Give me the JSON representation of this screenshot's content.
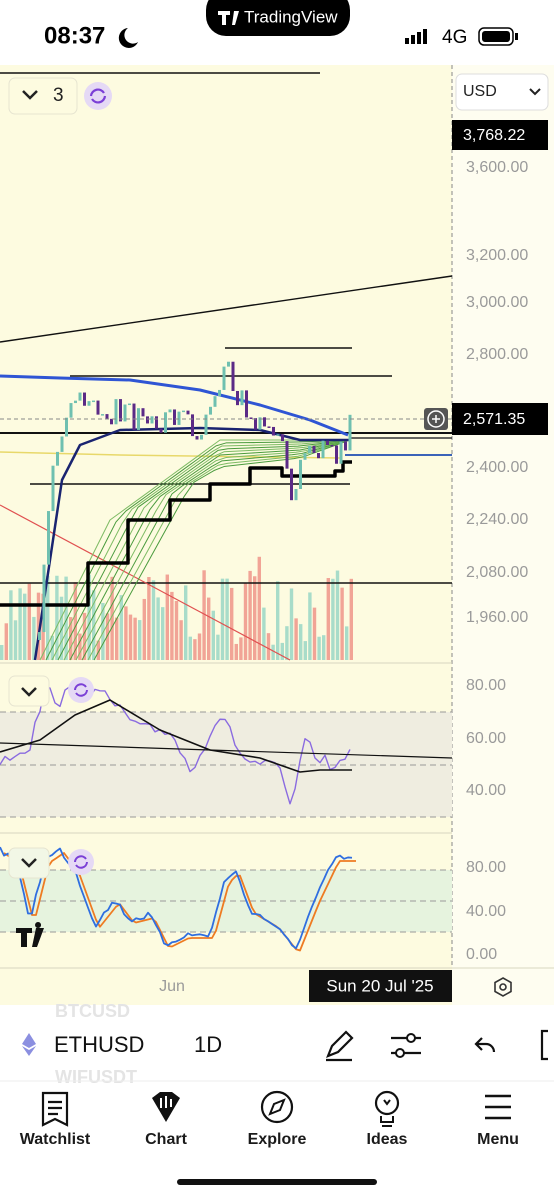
{
  "status_bar": {
    "time": "08:37",
    "network": "4G"
  },
  "app_banner": {
    "title": "TradingView"
  },
  "chart": {
    "indicator_count": "3",
    "currency": "USD",
    "high_label": "3,768.22",
    "price_labels": [
      "3,600.00",
      "3,200.00",
      "3,000.00",
      "2,800.00",
      "2,400.00",
      "2,240.00",
      "2,080.00",
      "1,960.00"
    ],
    "last_price": "2,571.35",
    "rsi_labels": [
      "80.00",
      "60.00",
      "40.00"
    ],
    "stoch_labels": [
      "80.00",
      "40.00",
      "0.00"
    ],
    "time_label": "Jun",
    "crosshair_date": "Sun 20 Jul '25"
  },
  "symbol_bar": {
    "list_above": "BTCUSD",
    "symbol": "ETHUSD",
    "interval": "1D",
    "list_below": "WIFUSDT"
  },
  "nav": {
    "items": [
      "Watchlist",
      "Chart",
      "Explore",
      "Ideas",
      "Menu"
    ]
  }
}
